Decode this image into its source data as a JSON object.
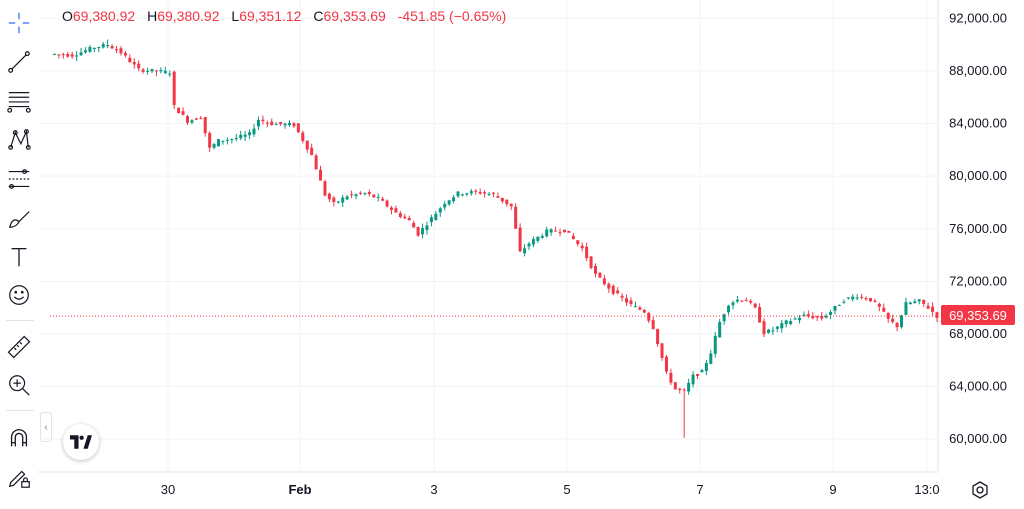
{
  "ohlc": {
    "open_label": "O",
    "open": "69,380.92",
    "high_label": "H",
    "high": "69,380.92",
    "low_label": "L",
    "low": "69,351.12",
    "close_label": "C",
    "close": "69,353.69",
    "change": "-451.85 (−0.65%)"
  },
  "current_price_label": "69,353.69",
  "toolbar": {
    "tools": [
      "crosshair-icon",
      "trend-line-icon",
      "fib-retracement-icon",
      "pattern-icon",
      "projection-icon",
      "brush-icon",
      "text-icon",
      "emoji-icon",
      "ruler-icon",
      "zoom-in-icon",
      "magnet-icon",
      "lock-drawings-icon"
    ],
    "collapse_glyph": "‹"
  },
  "colors": {
    "up": "#089981",
    "down": "#f23645",
    "grid": "#f0f3fa",
    "text": "#131722"
  },
  "chart_data": {
    "type": "candlestick",
    "yaxis_ticks": [
      "92,000.00",
      "88,000.00",
      "84,000.00",
      "80,000.00",
      "76,000.00",
      "72,000.00",
      "68,000.00",
      "64,000.00",
      "60,000.00"
    ],
    "ylim": [
      57500,
      93400
    ],
    "xaxis_ticks": [
      "30",
      "Feb",
      "3",
      "5",
      "7",
      "9",
      "13:0"
    ],
    "close_series": [
      {
        "i": 0,
        "v": 89300
      },
      {
        "i": 5,
        "v": 89200
      },
      {
        "i": 10,
        "v": 89800
      },
      {
        "i": 13,
        "v": 90000
      },
      {
        "i": 16,
        "v": 89400
      },
      {
        "i": 20,
        "v": 88100
      },
      {
        "i": 27,
        "v": 87900
      },
      {
        "i": 28,
        "v": 85300
      },
      {
        "i": 31,
        "v": 84200
      },
      {
        "i": 34,
        "v": 84500
      },
      {
        "i": 36,
        "v": 82100
      },
      {
        "i": 38,
        "v": 82700
      },
      {
        "i": 42,
        "v": 82900
      },
      {
        "i": 45,
        "v": 83200
      },
      {
        "i": 47,
        "v": 84300
      },
      {
        "i": 50,
        "v": 84000
      },
      {
        "i": 55,
        "v": 83900
      },
      {
        "i": 59,
        "v": 81600
      },
      {
        "i": 62,
        "v": 78600
      },
      {
        "i": 64,
        "v": 77900
      },
      {
        "i": 67,
        "v": 78500
      },
      {
        "i": 71,
        "v": 78700
      },
      {
        "i": 74,
        "v": 78300
      },
      {
        "i": 78,
        "v": 77200
      },
      {
        "i": 81,
        "v": 76600
      },
      {
        "i": 83,
        "v": 75600
      },
      {
        "i": 86,
        "v": 76800
      },
      {
        "i": 89,
        "v": 78000
      },
      {
        "i": 92,
        "v": 78700
      },
      {
        "i": 96,
        "v": 78800
      },
      {
        "i": 100,
        "v": 78600
      },
      {
        "i": 104,
        "v": 77700
      },
      {
        "i": 106,
        "v": 74200
      },
      {
        "i": 108,
        "v": 74900
      },
      {
        "i": 112,
        "v": 75800
      },
      {
        "i": 116,
        "v": 75900
      },
      {
        "i": 120,
        "v": 74500
      },
      {
        "i": 123,
        "v": 72500
      },
      {
        "i": 127,
        "v": 71200
      },
      {
        "i": 131,
        "v": 70200
      },
      {
        "i": 134,
        "v": 69700
      },
      {
        "i": 136,
        "v": 68500
      },
      {
        "i": 139,
        "v": 65000
      },
      {
        "i": 141,
        "v": 63800
      },
      {
        "i": 143,
        "v": 63600
      },
      {
        "i": 145,
        "v": 64800
      },
      {
        "i": 147,
        "v": 65100
      },
      {
        "i": 149,
        "v": 66600
      },
      {
        "i": 151,
        "v": 68900
      },
      {
        "i": 153,
        "v": 70300
      },
      {
        "i": 155,
        "v": 70600
      },
      {
        "i": 157,
        "v": 70600
      },
      {
        "i": 159,
        "v": 69900
      },
      {
        "i": 161,
        "v": 68100
      },
      {
        "i": 163,
        "v": 68300
      },
      {
        "i": 166,
        "v": 68900
      },
      {
        "i": 170,
        "v": 69400
      },
      {
        "i": 174,
        "v": 69200
      },
      {
        "i": 176,
        "v": 69700
      },
      {
        "i": 179,
        "v": 70600
      },
      {
        "i": 182,
        "v": 70900
      },
      {
        "i": 185,
        "v": 70600
      },
      {
        "i": 187,
        "v": 70000
      },
      {
        "i": 189,
        "v": 69100
      },
      {
        "i": 191,
        "v": 68600
      },
      {
        "i": 193,
        "v": 70300
      },
      {
        "i": 196,
        "v": 70500
      },
      {
        "i": 198,
        "v": 70000
      },
      {
        "i": 200,
        "v": 69354
      }
    ],
    "extremes": {
      "high": 90400,
      "low": 60100
    },
    "grid": true
  }
}
